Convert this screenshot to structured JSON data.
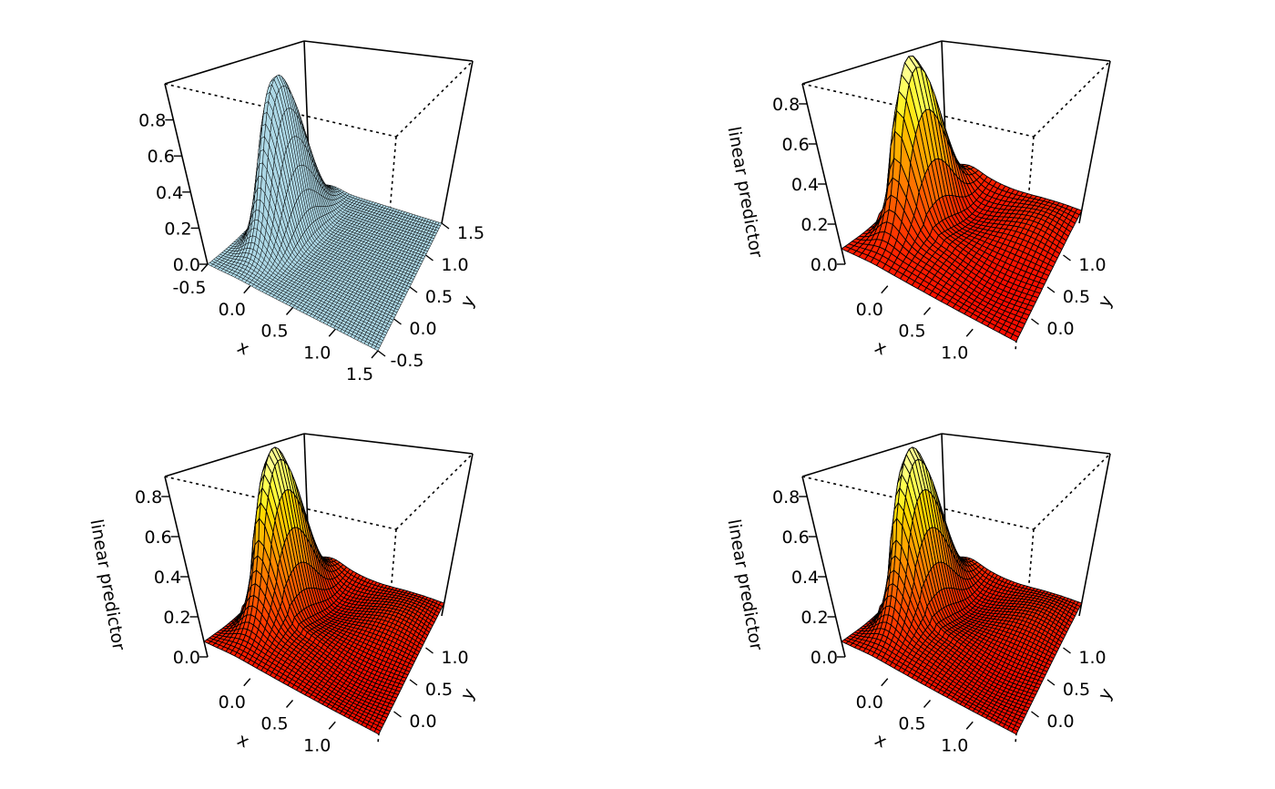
{
  "chart_data": [
    {
      "type": "surface",
      "xlabel": "x",
      "ylabel": "y",
      "zlabel": "",
      "xlim": [
        -0.5,
        1.5
      ],
      "ylim": [
        -0.5,
        1.5
      ],
      "zlim": [
        0,
        1.0
      ],
      "xticks": [
        "-0.5",
        "0.0",
        "0.5",
        "1.0",
        "1.5"
      ],
      "xtick_values": [
        -0.5,
        0,
        0.5,
        1,
        1.5
      ],
      "yticks": [
        "-0.5",
        "0.0",
        "0.5",
        "1.0",
        "1.5"
      ],
      "ytick_values": [
        -0.5,
        0,
        0.5,
        1,
        1.5
      ],
      "zticks": [
        "0.0",
        "0.2",
        "0.4",
        "0.6",
        "0.8"
      ],
      "ztick_values": [
        0,
        0.2,
        0.4,
        0.6,
        0.8
      ],
      "peak": {
        "x": -0.15,
        "y": 0.6,
        "z": 0.95
      },
      "fill": "#add8e6",
      "grid": 50,
      "shading": "single-color"
    },
    {
      "type": "surface",
      "xlabel": "x",
      "ylabel": "y",
      "zlabel": "linear predictor",
      "xlim": [
        -0.5,
        1.5
      ],
      "ylim": [
        -0.5,
        1.5
      ],
      "zlim": [
        0,
        0.9
      ],
      "xticks": [
        "0.0",
        "0.5",
        "1.0"
      ],
      "xtick_values": [
        0,
        0.5,
        1
      ],
      "yticks": [
        "0.0",
        "0.5",
        "1.0"
      ],
      "ytick_values": [
        0,
        0.5,
        1
      ],
      "zticks": [
        "0.0",
        "0.2",
        "0.4",
        "0.6",
        "0.8"
      ],
      "ztick_values": [
        0,
        0.2,
        0.4,
        0.6,
        0.8
      ],
      "peak": {
        "x": -0.15,
        "y": 0.6,
        "z": 0.88
      },
      "fill": "heat",
      "grid": 30,
      "shading": "heat-colors"
    },
    {
      "type": "surface",
      "xlabel": "x",
      "ylabel": "y",
      "zlabel": "linear predictor",
      "xlim": [
        -0.5,
        1.5
      ],
      "ylim": [
        -0.5,
        1.5
      ],
      "zlim": [
        0,
        0.9
      ],
      "xticks": [
        "0.0",
        "0.5",
        "1.0"
      ],
      "xtick_values": [
        0,
        0.5,
        1
      ],
      "yticks": [
        "0.0",
        "0.5",
        "1.0"
      ],
      "ytick_values": [
        0,
        0.5,
        1
      ],
      "zticks": [
        "0.0",
        "0.2",
        "0.4",
        "0.6",
        "0.8"
      ],
      "ztick_values": [
        0,
        0.2,
        0.4,
        0.6,
        0.8
      ],
      "peak": {
        "x": -0.15,
        "y": 0.6,
        "z": 0.88
      },
      "fill": "heat",
      "grid": 40,
      "shading": "heat-colors"
    },
    {
      "type": "surface",
      "xlabel": "x",
      "ylabel": "y",
      "zlabel": "linear predictor",
      "xlim": [
        -0.5,
        1.5
      ],
      "ylim": [
        -0.5,
        1.5
      ],
      "zlim": [
        0,
        0.9
      ],
      "xticks": [
        "0.0",
        "0.5",
        "1.0"
      ],
      "xtick_values": [
        0,
        0.5,
        1
      ],
      "yticks": [
        "0.0",
        "0.5",
        "1.0"
      ],
      "ytick_values": [
        0,
        0.5,
        1
      ],
      "zticks": [
        "0.0",
        "0.2",
        "0.4",
        "0.6",
        "0.8"
      ],
      "ztick_values": [
        0,
        0.2,
        0.4,
        0.6,
        0.8
      ],
      "peak": {
        "x": -0.15,
        "y": 0.6,
        "z": 0.88
      },
      "fill": "heat",
      "grid": 40,
      "shading": "heat-colors"
    }
  ]
}
